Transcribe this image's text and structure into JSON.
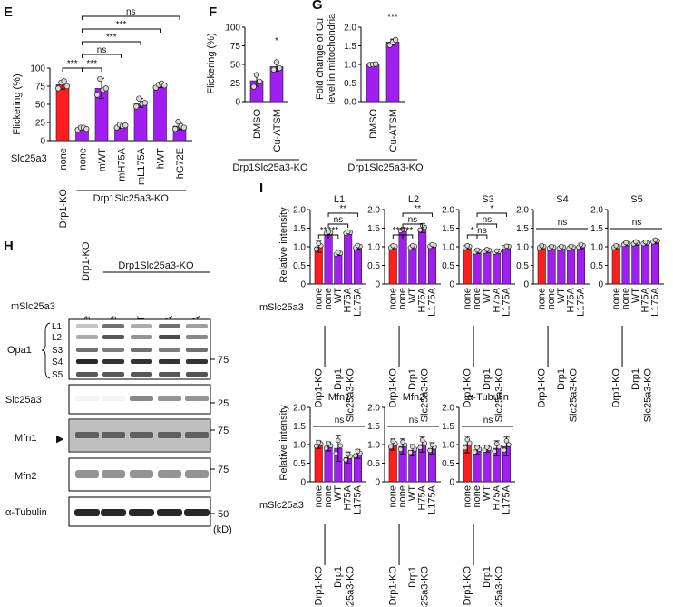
{
  "colors": {
    "red": "#ff1d1d",
    "purple": "#a11ef0",
    "light_purple": "#bb66f2"
  },
  "panel_E": {
    "letter": "E",
    "ylabel": "Flickering (%)",
    "row_label": "Slc25a3",
    "group_labels": [
      "Drp1-KO",
      "Drp1Slc25a3-KO"
    ],
    "sig": [
      "***",
      "***",
      "ns",
      "***",
      "***",
      "ns"
    ],
    "chart_data": {
      "type": "bar",
      "categories": [
        "none",
        "none",
        "mWT",
        "mH75A",
        "mL175A",
        "hWT",
        "hG72E"
      ],
      "values": [
        77,
        17,
        72,
        20,
        52,
        76,
        20
      ],
      "errors": [
        6,
        2,
        14,
        3,
        6,
        3,
        5
      ],
      "points": [
        [
          72,
          80,
          82,
          75
        ],
        [
          15,
          18,
          18,
          16
        ],
        [
          63,
          85,
          70,
          72
        ],
        [
          18,
          22,
          20,
          21
        ],
        [
          47,
          58,
          51,
          52
        ],
        [
          73,
          77,
          79,
          76
        ],
        [
          16,
          26,
          20,
          18
        ]
      ],
      "colors": [
        "red",
        "purple",
        "purple",
        "purple",
        "purple",
        "purple",
        "purple"
      ],
      "ylim": [
        0,
        100
      ],
      "yticks": [
        "0",
        "25",
        "50",
        "75",
        "100"
      ]
    }
  },
  "panel_F": {
    "letter": "F",
    "ylabel": "Flickering (%)",
    "group_label": "Drp1Slc25a3-KO",
    "sig": "*",
    "chart_data": {
      "type": "bar",
      "categories": [
        "DMSO",
        "Cu-ATSM"
      ],
      "values": [
        28,
        47
      ],
      "errors": [
        8,
        6
      ],
      "points": [
        [
          20,
          36,
          27
        ],
        [
          43,
          53,
          45
        ]
      ],
      "colors": [
        "purple",
        "purple"
      ],
      "ylim": [
        0,
        100
      ],
      "yticks": [
        "0",
        "25",
        "50",
        "75",
        "100"
      ]
    }
  },
  "panel_G": {
    "letter": "G",
    "ylabel_lines": [
      "Fold change of Cu",
      "level in mitochondria"
    ],
    "group_label": "Drp1Slc25a3-KO",
    "sig": "***",
    "chart_data": {
      "type": "bar",
      "categories": [
        "DMSO",
        "Cu-ATSM"
      ],
      "values": [
        1.0,
        1.6
      ],
      "errors": [
        0.02,
        0.08
      ],
      "points": [
        [
          0.99,
          1.0,
          1.01
        ],
        [
          1.52,
          1.6,
          1.66
        ]
      ],
      "colors": [
        "purple",
        "purple"
      ],
      "ylim": [
        0,
        2
      ],
      "yticks": [
        "0.0",
        "0.5",
        "1.0",
        "1.5",
        "2.0"
      ]
    }
  },
  "panel_H": {
    "letter": "H",
    "top_label_lane1": "Drp1-KO",
    "top_group_label": "Drp1Slc25a3-KO",
    "row_label": "mSlc25a3",
    "lanes": [
      "none",
      "none",
      "WT",
      "H75A",
      "L175A"
    ],
    "blots": [
      {
        "name": "Opa1",
        "marker": "75"
      },
      {
        "name": "Slc25a3",
        "marker": "25"
      },
      {
        "name": "Mfn1",
        "marker": "75"
      },
      {
        "name": "Mfn2",
        "marker": "75"
      },
      {
        "name": "α-Tubulin",
        "marker": "50"
      }
    ],
    "opa1_bands": [
      "L1",
      "L2",
      "S3",
      "S4",
      "S5"
    ],
    "unit": "(kD)",
    "mfn1_arrow": "▶"
  },
  "panel_I": {
    "letter": "I",
    "ylabel": "Relative intensity",
    "row_label": "mSlc25a3",
    "cats": [
      "none",
      "none",
      "WT",
      "H75A",
      "L175A"
    ],
    "bottom_labels": [
      "Drp1-KO",
      "Drp1",
      "Slc25a3-KO"
    ],
    "yticks": [
      "0",
      "0.5",
      "1.0",
      "1.5",
      "2.0"
    ],
    "ylim": [
      0,
      2
    ],
    "charts": [
      {
        "title": "L1",
        "values": [
          1.0,
          1.38,
          0.82,
          1.38,
          1.0
        ],
        "errors": [
          0.15,
          0.03,
          0.05,
          0.04,
          0.06
        ],
        "sig": [
          "**",
          "***",
          "ns",
          "**"
        ]
      },
      {
        "title": "L2",
        "values": [
          1.0,
          1.45,
          1.0,
          1.5,
          1.03
        ],
        "errors": [
          0.05,
          0.04,
          0.05,
          0.12,
          0.05
        ],
        "sig": [
          "***",
          "***",
          "ns",
          "**"
        ]
      },
      {
        "title": "S3",
        "values": [
          1.0,
          0.88,
          0.9,
          0.87,
          1.0
        ],
        "errors": [
          0.05,
          0.06,
          0.05,
          0.04,
          0.03
        ],
        "sig": [
          "*",
          "ns",
          "ns",
          "*"
        ]
      },
      {
        "title": "S4",
        "values": [
          1.0,
          0.98,
          0.98,
          0.98,
          1.02
        ],
        "errors": [
          0.05,
          0.05,
          0.05,
          0.06,
          0.07
        ],
        "sig": [
          "ns"
        ]
      },
      {
        "title": "S5",
        "values": [
          1.0,
          1.08,
          1.1,
          1.1,
          1.15
        ],
        "errors": [
          0.05,
          0.05,
          0.06,
          0.05,
          0.06
        ],
        "sig": [
          "ns"
        ]
      },
      {
        "title": "Mfn1",
        "values": [
          1.0,
          0.95,
          0.9,
          0.65,
          0.75
        ],
        "errors": [
          0.1,
          0.12,
          0.35,
          0.15,
          0.12
        ],
        "sig": [
          "ns"
        ]
      },
      {
        "title": "Mfn2",
        "values": [
          1.0,
          0.95,
          0.85,
          1.0,
          0.9
        ],
        "errors": [
          0.15,
          0.2,
          0.15,
          0.2,
          0.15
        ],
        "sig": [
          "ns"
        ]
      },
      {
        "title": "α-Tubulin",
        "values": [
          1.0,
          0.85,
          0.88,
          0.9,
          0.95
        ],
        "errors": [
          0.22,
          0.12,
          0.08,
          0.2,
          0.25
        ],
        "sig": [
          "ns"
        ]
      }
    ]
  }
}
